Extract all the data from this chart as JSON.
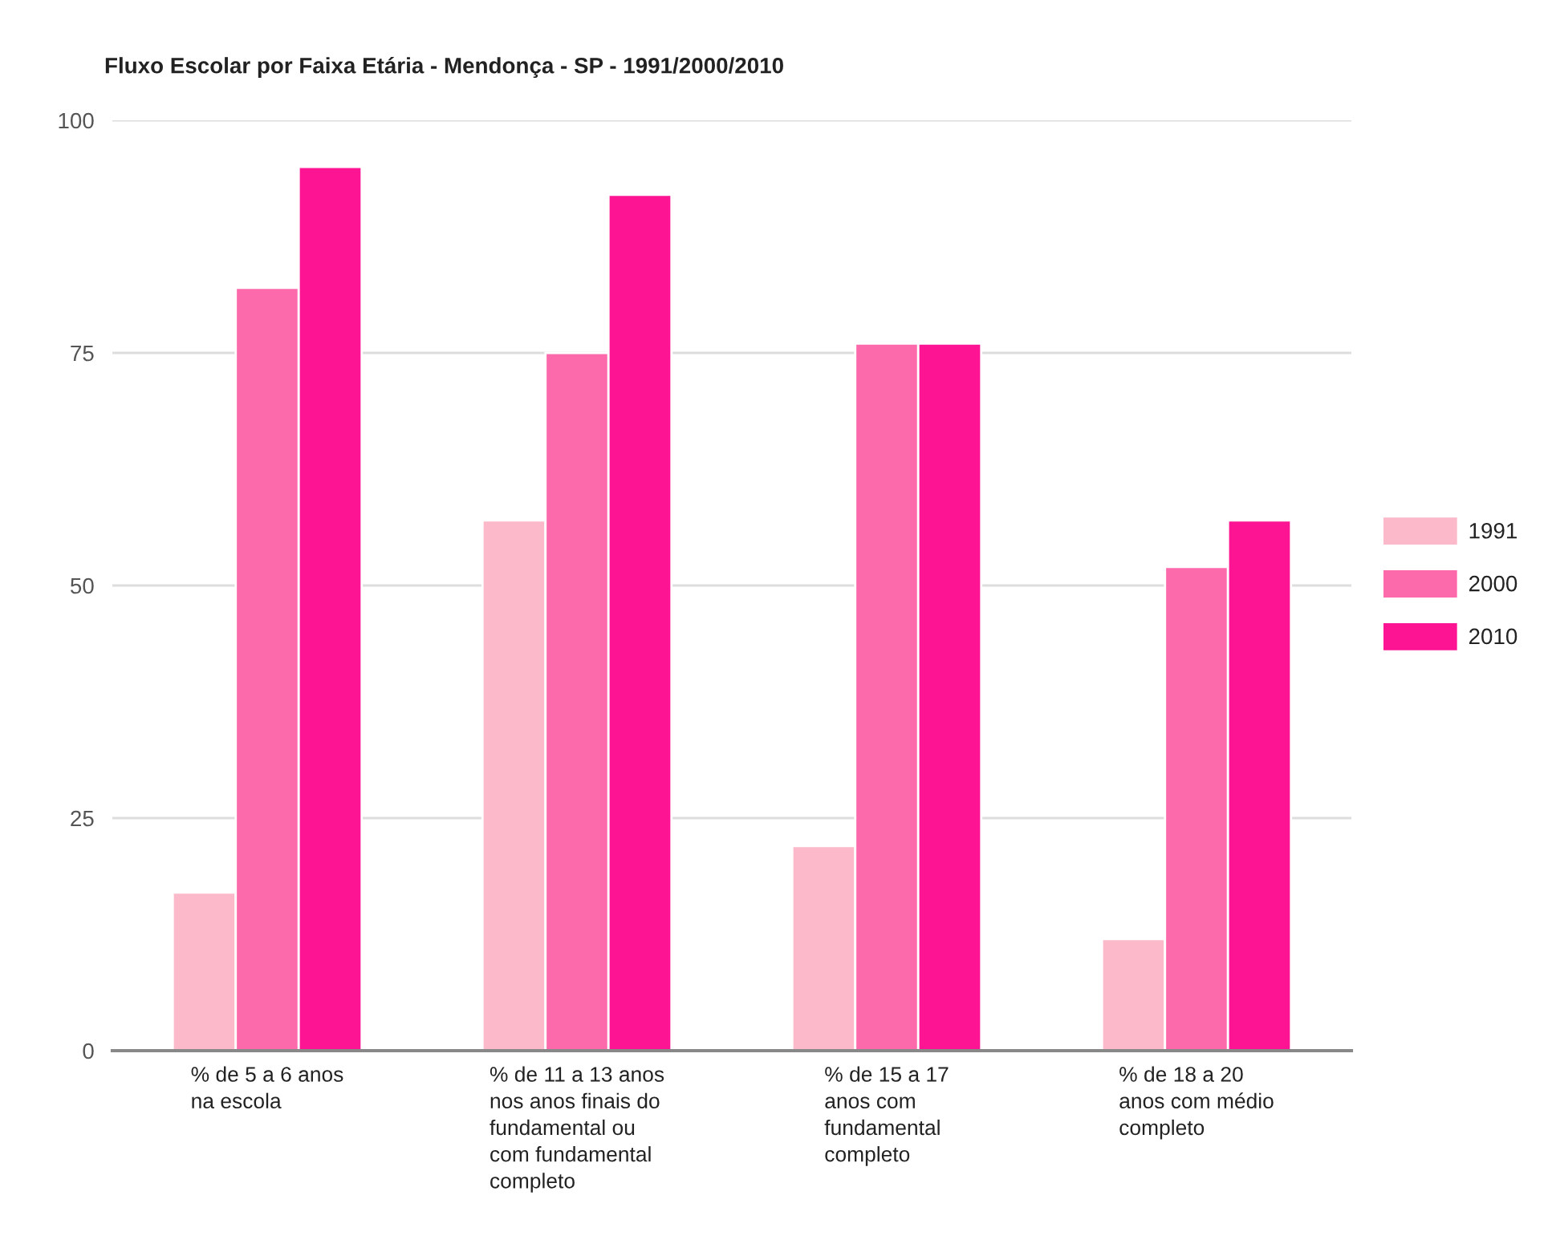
{
  "chart_data": {
    "type": "bar",
    "title": "Fluxo Escolar por Faixa Etária - Mendonça - SP - 1991/2000/2010",
    "categories": [
      "% de 5 a 6 anos\nna escola",
      "% de 11 a 13 anos\nnos anos finais do\nfundamental ou\ncom fundamental\ncompleto",
      "% de 15 a 17\nanos com\nfundamental\ncompleto",
      "% de 18 a 20\nanos com médio\ncompleto"
    ],
    "series": [
      {
        "name": "1991",
        "color": "#fbb9c9",
        "values": [
          17,
          57,
          22,
          12
        ]
      },
      {
        "name": "2000",
        "color": "#fd6aab",
        "values": [
          82,
          75,
          76,
          52
        ]
      },
      {
        "name": "2010",
        "color": "#fc1493",
        "values": [
          95,
          92,
          76,
          57
        ]
      }
    ],
    "ylim": [
      0,
      100
    ],
    "yticks": [
      0,
      25,
      50,
      75,
      100
    ],
    "grid": "y",
    "legend": "right"
  }
}
